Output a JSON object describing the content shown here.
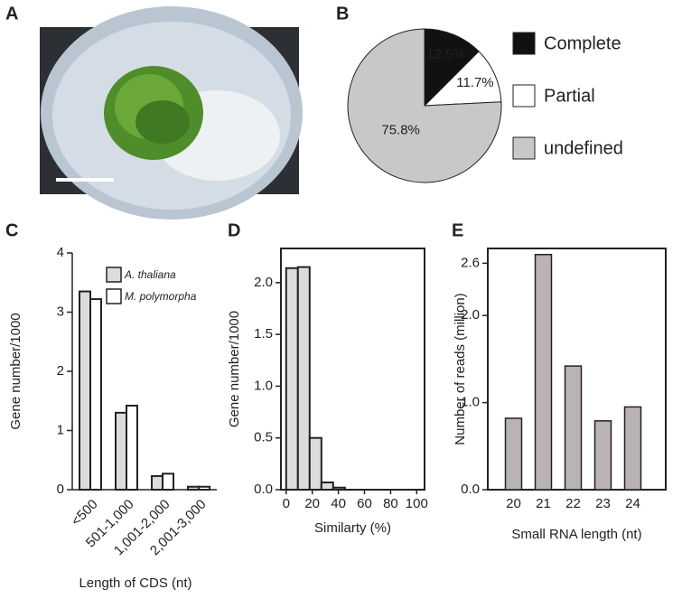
{
  "image_panel": {
    "panel": "A"
  },
  "chart_data": [
    {
      "type": "pie",
      "panel": "B",
      "categories": [
        "Complete",
        "Partial",
        "undefined"
      ],
      "values": [
        12.5,
        11.7,
        75.8
      ],
      "value_labels": [
        "12.5%",
        "11.7%",
        "75.8%"
      ],
      "colors": [
        "#111111",
        "#ffffff",
        "#c8c8c8"
      ]
    },
    {
      "type": "grouped_bar",
      "panel": "C",
      "y_label": "Gene number/1000",
      "x_label": "Length of CDS (nt)",
      "categories": [
        "<500",
        "501-1,000",
        "1,001-2,000",
        "2,001-3,000"
      ],
      "series": [
        {
          "name": "A. thaliana",
          "color": "#dcdcdc",
          "values": [
            3.35,
            1.3,
            0.23,
            0.05
          ]
        },
        {
          "name": "M. polymorpha",
          "color": "#ffffff",
          "values": [
            3.22,
            1.42,
            0.27,
            0.05
          ]
        }
      ],
      "ylim": [
        0,
        4
      ],
      "yticks": [
        0,
        1,
        2,
        3,
        4
      ],
      "legend": "upper right",
      "frame": false
    },
    {
      "type": "histogram",
      "panel": "D",
      "y_label": "Gene number/1000",
      "x_label": "Similarty (%)",
      "bins": [
        0,
        9,
        18,
        27,
        36,
        45
      ],
      "values": [
        2.14,
        2.15,
        0.5,
        0.07,
        0.02
      ],
      "color": "#dcdcdc",
      "xlim": [
        -4,
        106
      ],
      "xticks": [
        0,
        20,
        40,
        60,
        80,
        100
      ],
      "ylim": [
        0,
        2.33
      ],
      "yticks": [
        {
          "value": 0,
          "label": "0.0"
        },
        0.5,
        {
          "value": 1,
          "label": "1.0"
        },
        1.5,
        {
          "value": 2,
          "label": "2.0"
        }
      ],
      "frame": true
    },
    {
      "type": "bar",
      "panel": "E",
      "y_label": "Number of reads (million)",
      "x_label": "Small RNA length (nt)",
      "categories": [
        "20",
        "21",
        "22",
        "23",
        "24"
      ],
      "values": [
        0.82,
        2.7,
        1.42,
        0.79,
        0.95
      ],
      "color": "#b9b3b3",
      "ylim": [
        0,
        2.77
      ],
      "yticks": [
        {
          "value": 0,
          "label": "0.0"
        },
        {
          "value": 1,
          "label": "1.0"
        },
        {
          "value": 2,
          "label": "2.0"
        },
        2.6
      ],
      "frame": true
    }
  ]
}
